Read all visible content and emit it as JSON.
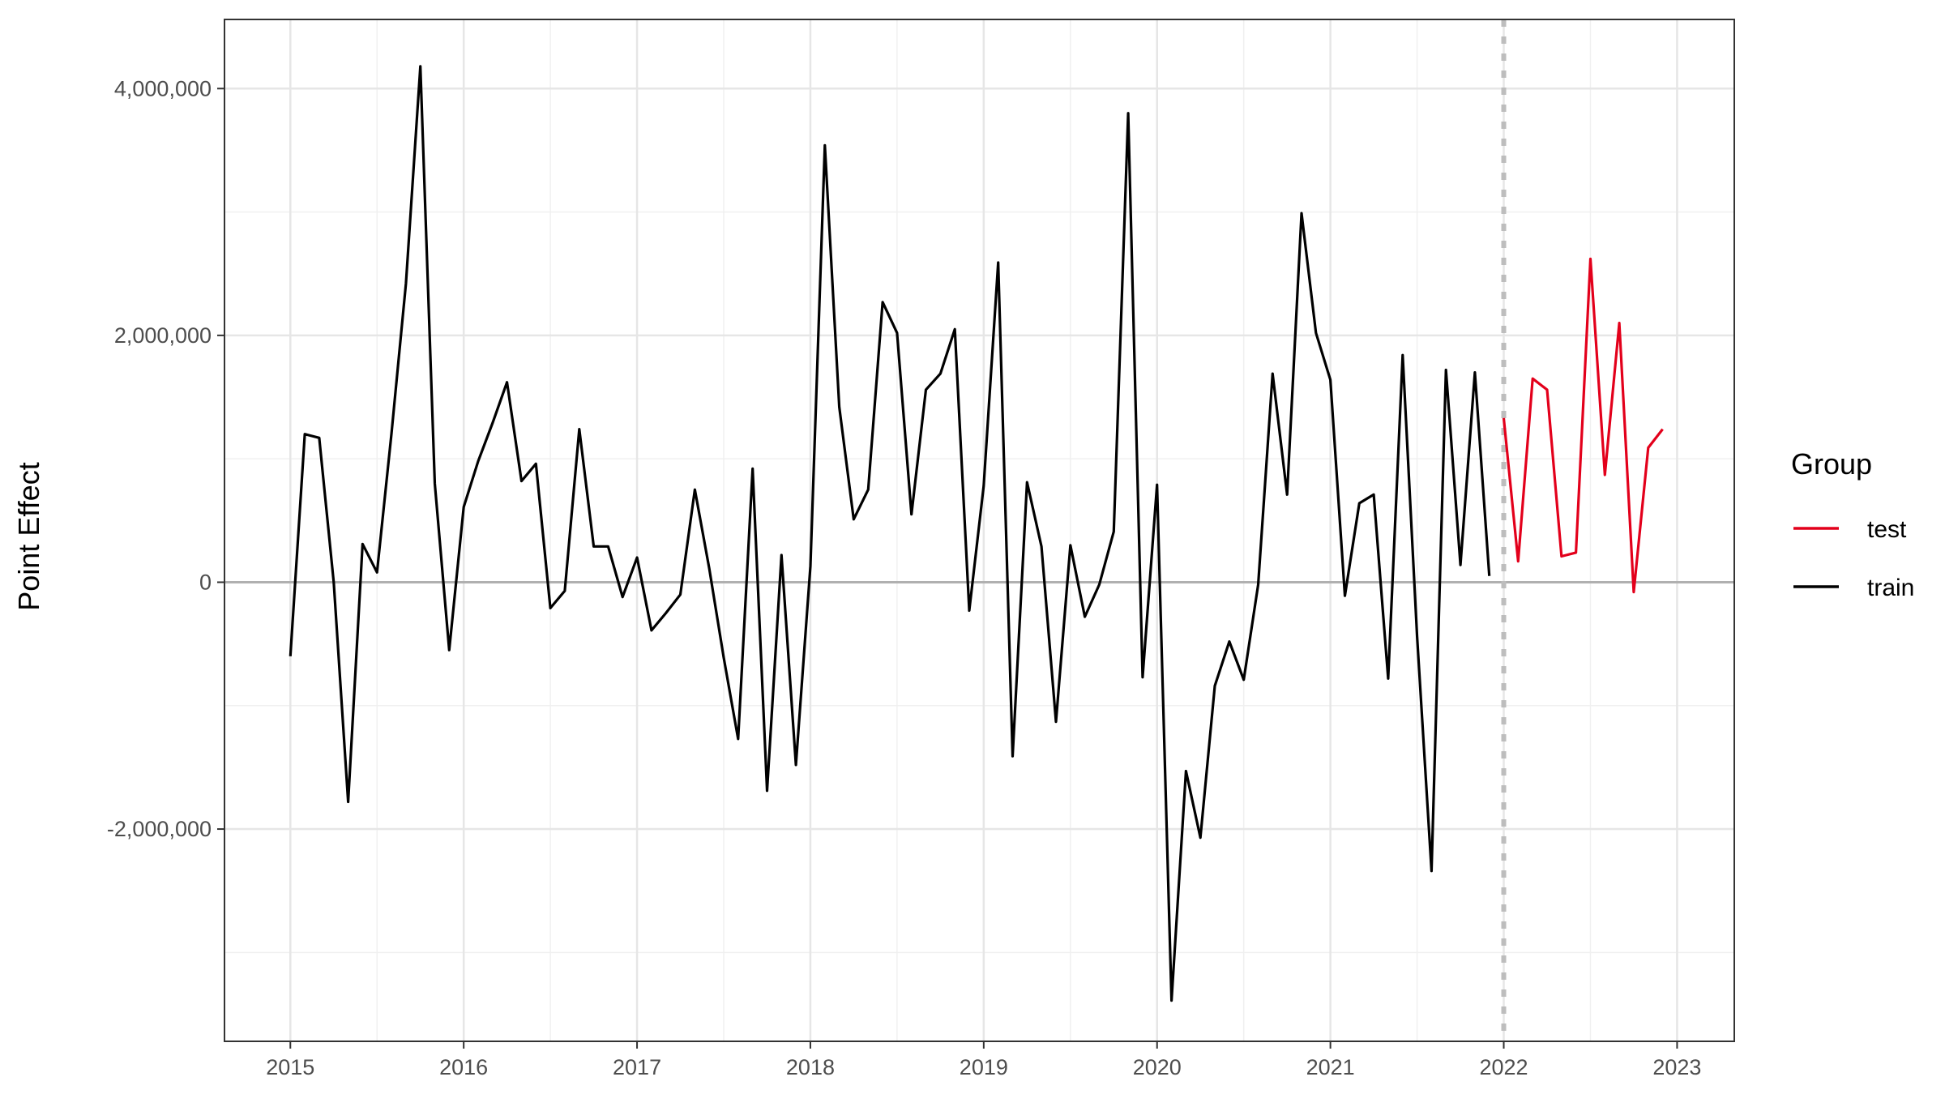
{
  "chart_data": {
    "type": "line",
    "ylabel": "Point Effect",
    "xlabel": "",
    "x_ticks": [
      "2015",
      "2016",
      "2017",
      "2018",
      "2019",
      "2020",
      "2021",
      "2022",
      "2023"
    ],
    "y_ticks": [
      {
        "value": 4000000,
        "label": "4,000,000"
      },
      {
        "value": 2000000,
        "label": "2,000,000"
      },
      {
        "value": 0,
        "label": "0"
      },
      {
        "value": -2000000,
        "label": "-2,000,000"
      }
    ],
    "xlim": [
      2014.62,
      2023.33
    ],
    "ylim": [
      -3720000,
      4560000
    ],
    "zero_line": 0,
    "split_date": "2022-01",
    "grid": true,
    "legend": {
      "title": "Group",
      "position": "right"
    },
    "series": [
      {
        "name": "test",
        "color": "#e3001b",
        "x": [
          "2022-01",
          "2022-02",
          "2022-03",
          "2022-04",
          "2022-05",
          "2022-06",
          "2022-07",
          "2022-08",
          "2022-09",
          "2022-10",
          "2022-11",
          "2022-12"
        ],
        "values": [
          1330000,
          170000,
          1650000,
          1560000,
          210000,
          240000,
          2620000,
          870000,
          2100000,
          -80000,
          1090000,
          1240000
        ]
      },
      {
        "name": "train",
        "color": "#000000",
        "x": [
          "2015-01",
          "2015-02",
          "2015-03",
          "2015-04",
          "2015-05",
          "2015-06",
          "2015-07",
          "2015-08",
          "2015-09",
          "2015-10",
          "2015-11",
          "2015-12",
          "2016-01",
          "2016-02",
          "2016-03",
          "2016-04",
          "2016-05",
          "2016-06",
          "2016-07",
          "2016-08",
          "2016-09",
          "2016-10",
          "2016-11",
          "2016-12",
          "2017-01",
          "2017-02",
          "2017-03",
          "2017-04",
          "2017-05",
          "2017-06",
          "2017-07",
          "2017-08",
          "2017-09",
          "2017-10",
          "2017-11",
          "2017-12",
          "2018-01",
          "2018-02",
          "2018-03",
          "2018-04",
          "2018-05",
          "2018-06",
          "2018-07",
          "2018-08",
          "2018-09",
          "2018-10",
          "2018-11",
          "2018-12",
          "2019-01",
          "2019-02",
          "2019-03",
          "2019-04",
          "2019-05",
          "2019-06",
          "2019-07",
          "2019-08",
          "2019-09",
          "2019-10",
          "2019-11",
          "2019-12",
          "2020-01",
          "2020-02",
          "2020-03",
          "2020-04",
          "2020-05",
          "2020-06",
          "2020-07",
          "2020-08",
          "2020-09",
          "2020-10",
          "2020-11",
          "2020-12",
          "2021-01",
          "2021-02",
          "2021-03",
          "2021-04",
          "2021-05",
          "2021-06",
          "2021-07",
          "2021-08",
          "2021-09",
          "2021-10",
          "2021-11",
          "2021-12"
        ],
        "values": [
          -600000,
          1200000,
          1170000,
          0,
          -1780000,
          310000,
          80000,
          1200000,
          2420000,
          4180000,
          800000,
          -550000,
          610000,
          980000,
          1290000,
          1620000,
          820000,
          960000,
          -210000,
          -70000,
          1240000,
          290000,
          290000,
          -120000,
          200000,
          -390000,
          -250000,
          -100000,
          750000,
          110000,
          -610000,
          -1270000,
          920000,
          -1690000,
          220000,
          -1480000,
          130000,
          3540000,
          1420000,
          510000,
          750000,
          2270000,
          2020000,
          550000,
          1560000,
          1690000,
          2050000,
          -230000,
          780000,
          2590000,
          -1410000,
          810000,
          290000,
          -1130000,
          300000,
          -280000,
          -20000,
          410000,
          3800000,
          -770000,
          790000,
          -3390000,
          -1530000,
          -2070000,
          -840000,
          -480000,
          -790000,
          -20000,
          1690000,
          710000,
          2990000,
          2020000,
          1640000,
          -110000,
          640000,
          710000,
          -780000,
          1840000,
          -440000,
          -2340000,
          1720000,
          140000,
          1700000,
          50000
        ]
      }
    ]
  }
}
